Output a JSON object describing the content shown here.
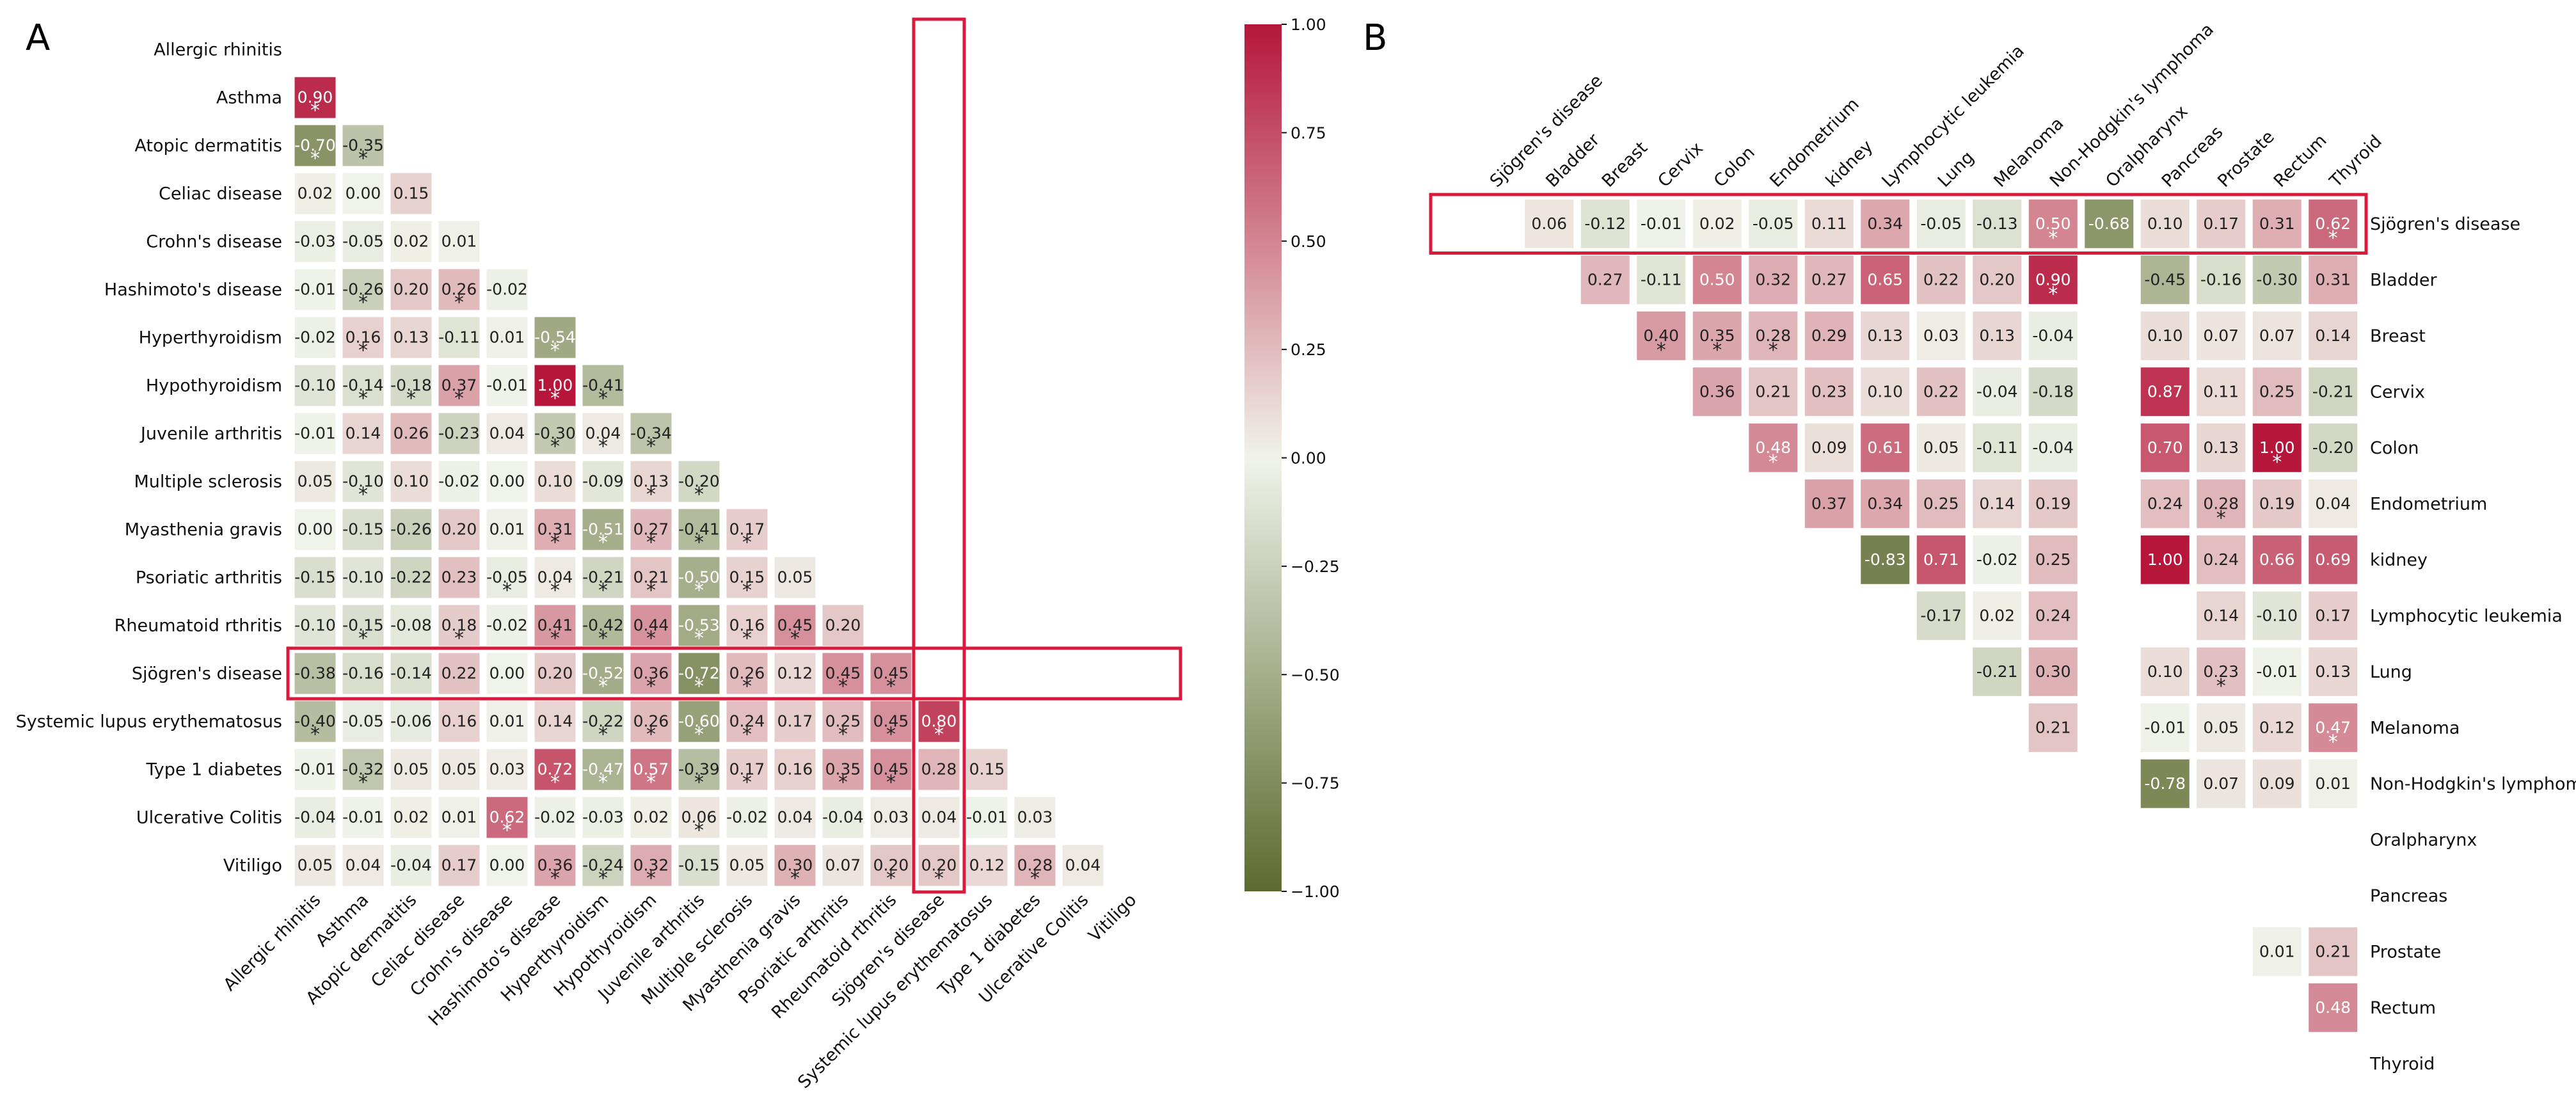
{
  "colors": {
    "negative_end": "#5c6a2e",
    "neutral": "#f0f3ea",
    "positive_end": "#b5163a",
    "highlight": "#d81b3c"
  },
  "panel_labels": [
    "A",
    "B"
  ],
  "chart_data": [
    {
      "type": "heatmap",
      "panel": "A",
      "shape": "lower-triangle",
      "labels": [
        "Allergic rhinitis",
        "Asthma",
        "Atopic dermatitis",
        "Celiac disease",
        "Crohn's disease",
        "Hashimoto's disease",
        "Hyperthyroidism",
        "Hypothyroidism",
        "Juvenile arthritis",
        "Multiple sclerosis",
        "Myasthenia gravis",
        "Psoriatic arthritis",
        "Rheumatoid rthritis",
        "Sjögren's disease",
        "Systemic lupus erythematosus",
        "Type 1 diabetes",
        "Ulcerative Colitis",
        "Vitiligo"
      ],
      "matrix": [
        [],
        [
          0.9
        ],
        [
          -0.7,
          -0.35
        ],
        [
          0.02,
          0.0,
          0.15
        ],
        [
          -0.03,
          -0.05,
          0.02,
          0.01
        ],
        [
          -0.01,
          -0.26,
          0.2,
          0.26,
          -0.02
        ],
        [
          -0.02,
          0.16,
          0.13,
          -0.11,
          0.01,
          -0.54
        ],
        [
          -0.1,
          -0.14,
          -0.18,
          0.37,
          -0.01,
          1.0,
          -0.41
        ],
        [
          -0.01,
          0.14,
          0.26,
          -0.23,
          0.04,
          -0.3,
          0.04,
          -0.34
        ],
        [
          0.05,
          -0.1,
          0.1,
          -0.02,
          0.0,
          0.1,
          -0.09,
          0.13,
          -0.2
        ],
        [
          0.0,
          -0.15,
          -0.26,
          0.2,
          0.01,
          0.31,
          -0.51,
          0.27,
          -0.41,
          0.17
        ],
        [
          -0.15,
          -0.1,
          -0.22,
          0.23,
          -0.05,
          0.04,
          -0.21,
          0.21,
          -0.5,
          0.15,
          0.05
        ],
        [
          -0.1,
          -0.15,
          -0.08,
          0.18,
          -0.02,
          0.41,
          -0.42,
          0.44,
          -0.53,
          0.16,
          0.45,
          0.2
        ],
        [
          -0.38,
          -0.16,
          -0.14,
          0.22,
          0.0,
          0.2,
          -0.52,
          0.36,
          -0.72,
          0.26,
          0.12,
          0.45,
          0.45
        ],
        [
          -0.4,
          -0.05,
          -0.06,
          0.16,
          0.01,
          0.14,
          -0.22,
          0.26,
          -0.6,
          0.24,
          0.17,
          0.25,
          0.45,
          0.8
        ],
        [
          -0.01,
          -0.32,
          0.05,
          0.05,
          0.03,
          0.72,
          -0.47,
          0.57,
          -0.39,
          0.17,
          0.16,
          0.35,
          0.45,
          0.28,
          0.15
        ],
        [
          -0.04,
          -0.01,
          0.02,
          0.01,
          0.62,
          -0.02,
          -0.03,
          0.02,
          0.06,
          -0.02,
          0.04,
          -0.04,
          0.03,
          0.04,
          -0.01,
          0.03
        ],
        [
          0.05,
          0.04,
          -0.04,
          0.17,
          0.0,
          0.36,
          -0.24,
          0.32,
          -0.15,
          0.05,
          0.3,
          0.07,
          0.2,
          0.2,
          0.12,
          0.28,
          0.04
        ]
      ],
      "significant": [
        [
          1,
          0
        ],
        [
          2,
          0
        ],
        [
          2,
          1
        ],
        [
          5,
          1
        ],
        [
          5,
          3
        ],
        [
          6,
          1
        ],
        [
          6,
          5
        ],
        [
          7,
          1
        ],
        [
          7,
          2
        ],
        [
          7,
          3
        ],
        [
          7,
          5
        ],
        [
          7,
          6
        ],
        [
          8,
          5
        ],
        [
          8,
          6
        ],
        [
          8,
          7
        ],
        [
          9,
          1
        ],
        [
          9,
          7
        ],
        [
          9,
          8
        ],
        [
          10,
          5
        ],
        [
          10,
          6
        ],
        [
          10,
          7
        ],
        [
          10,
          8
        ],
        [
          10,
          9
        ],
        [
          11,
          4
        ],
        [
          11,
          5
        ],
        [
          11,
          6
        ],
        [
          11,
          7
        ],
        [
          11,
          8
        ],
        [
          11,
          9
        ],
        [
          12,
          1
        ],
        [
          12,
          3
        ],
        [
          12,
          5
        ],
        [
          12,
          6
        ],
        [
          12,
          7
        ],
        [
          12,
          8
        ],
        [
          12,
          9
        ],
        [
          12,
          10
        ],
        [
          13,
          6
        ],
        [
          13,
          7
        ],
        [
          13,
          8
        ],
        [
          13,
          9
        ],
        [
          13,
          11
        ],
        [
          13,
          12
        ],
        [
          14,
          0
        ],
        [
          14,
          6
        ],
        [
          14,
          7
        ],
        [
          14,
          8
        ],
        [
          14,
          9
        ],
        [
          14,
          11
        ],
        [
          14,
          12
        ],
        [
          14,
          13
        ],
        [
          15,
          1
        ],
        [
          15,
          5
        ],
        [
          15,
          6
        ],
        [
          15,
          7
        ],
        [
          15,
          8
        ],
        [
          15,
          9
        ],
        [
          15,
          11
        ],
        [
          15,
          12
        ],
        [
          16,
          4
        ],
        [
          16,
          8
        ],
        [
          17,
          5
        ],
        [
          17,
          6
        ],
        [
          17,
          7
        ],
        [
          17,
          10
        ],
        [
          17,
          12
        ],
        [
          17,
          13
        ],
        [
          17,
          15
        ]
      ],
      "highlight_label": "Sjögren's disease",
      "colorbar": {
        "min": -1.0,
        "max": 1.0,
        "ticks": [
          "1.00",
          "0.75",
          "0.50",
          "0.25",
          "0.00",
          "−0.25",
          "−0.50",
          "−0.75",
          "−1.00"
        ]
      }
    },
    {
      "type": "heatmap",
      "panel": "B",
      "col_labels": [
        "Sjögren's disease",
        "Bladder",
        "Breast",
        "Cervix",
        "Colon",
        "Endometrium",
        "kidney",
        "Lymphocytic  leukemia",
        "Lung",
        "Melanoma",
        "Non-Hodgkin's lymphoma",
        "Oralpharynx",
        "Pancreas",
        "Prostate",
        "Rectum",
        "Thyroid"
      ],
      "row_labels": [
        "Sjögren's disease",
        "Bladder",
        "Breast",
        "Cervix",
        "Colon",
        "Endometrium",
        "kidney",
        "Lymphocytic  leukemia",
        "Lung",
        "Melanoma",
        "Non-Hodgkin's lymphoma",
        "Oralpharynx",
        "Pancreas",
        "Prostate",
        "Rectum",
        "Thyroid"
      ],
      "cells": [
        [
          0,
          1,
          0.06
        ],
        [
          0,
          2,
          -0.12
        ],
        [
          0,
          3,
          -0.01
        ],
        [
          0,
          4,
          0.02
        ],
        [
          0,
          5,
          -0.05
        ],
        [
          0,
          6,
          0.11
        ],
        [
          0,
          7,
          0.34
        ],
        [
          0,
          8,
          -0.05
        ],
        [
          0,
          9,
          -0.13
        ],
        [
          0,
          10,
          0.5
        ],
        [
          0,
          11,
          -0.68
        ],
        [
          0,
          12,
          0.1
        ],
        [
          0,
          13,
          0.17
        ],
        [
          0,
          14,
          0.31
        ],
        [
          0,
          15,
          0.62
        ],
        [
          1,
          2,
          0.27
        ],
        [
          1,
          3,
          -0.11
        ],
        [
          1,
          4,
          0.5
        ],
        [
          1,
          5,
          0.32
        ],
        [
          1,
          6,
          0.27
        ],
        [
          1,
          7,
          0.65
        ],
        [
          1,
          8,
          0.22
        ],
        [
          1,
          9,
          0.2
        ],
        [
          1,
          10,
          0.9
        ],
        [
          1,
          12,
          -0.45
        ],
        [
          1,
          13,
          -0.16
        ],
        [
          1,
          14,
          -0.3
        ],
        [
          1,
          15,
          0.31
        ],
        [
          2,
          3,
          0.4
        ],
        [
          2,
          4,
          0.35
        ],
        [
          2,
          5,
          0.28
        ],
        [
          2,
          6,
          0.29
        ],
        [
          2,
          7,
          0.13
        ],
        [
          2,
          8,
          0.03
        ],
        [
          2,
          9,
          0.13
        ],
        [
          2,
          10,
          -0.04
        ],
        [
          2,
          12,
          0.1
        ],
        [
          2,
          13,
          0.07
        ],
        [
          2,
          14,
          0.07
        ],
        [
          2,
          15,
          0.14
        ],
        [
          3,
          4,
          0.36
        ],
        [
          3,
          5,
          0.21
        ],
        [
          3,
          6,
          0.23
        ],
        [
          3,
          7,
          0.1
        ],
        [
          3,
          8,
          0.22
        ],
        [
          3,
          9,
          -0.04
        ],
        [
          3,
          10,
          -0.18
        ],
        [
          3,
          12,
          0.87
        ],
        [
          3,
          13,
          0.11
        ],
        [
          3,
          14,
          0.25
        ],
        [
          3,
          15,
          -0.21
        ],
        [
          4,
          5,
          0.48
        ],
        [
          4,
          6,
          0.09
        ],
        [
          4,
          7,
          0.61
        ],
        [
          4,
          8,
          0.05
        ],
        [
          4,
          9,
          -0.11
        ],
        [
          4,
          10,
          -0.04
        ],
        [
          4,
          12,
          0.7
        ],
        [
          4,
          13,
          0.13
        ],
        [
          4,
          14,
          1.0
        ],
        [
          4,
          15,
          -0.2
        ],
        [
          5,
          6,
          0.37
        ],
        [
          5,
          7,
          0.34
        ],
        [
          5,
          8,
          0.25
        ],
        [
          5,
          9,
          0.14
        ],
        [
          5,
          10,
          0.19
        ],
        [
          5,
          12,
          0.24
        ],
        [
          5,
          13,
          0.28
        ],
        [
          5,
          14,
          0.19
        ],
        [
          5,
          15,
          0.04
        ],
        [
          6,
          7,
          -0.83
        ],
        [
          6,
          8,
          0.71
        ],
        [
          6,
          9,
          -0.02
        ],
        [
          6,
          10,
          0.25
        ],
        [
          6,
          12,
          1.0
        ],
        [
          6,
          13,
          0.24
        ],
        [
          6,
          14,
          0.66
        ],
        [
          6,
          15,
          0.69
        ],
        [
          7,
          8,
          -0.17
        ],
        [
          7,
          9,
          0.02
        ],
        [
          7,
          10,
          0.24
        ],
        [
          7,
          13,
          0.14
        ],
        [
          7,
          14,
          -0.1
        ],
        [
          7,
          15,
          0.17
        ],
        [
          8,
          9,
          -0.21
        ],
        [
          8,
          10,
          0.3
        ],
        [
          8,
          12,
          0.1
        ],
        [
          8,
          13,
          0.23
        ],
        [
          8,
          14,
          -0.01
        ],
        [
          8,
          15,
          0.13
        ],
        [
          9,
          10,
          0.21
        ],
        [
          9,
          12,
          -0.01
        ],
        [
          9,
          13,
          0.05
        ],
        [
          9,
          14,
          0.12
        ],
        [
          9,
          15,
          0.47
        ],
        [
          10,
          12,
          -0.78
        ],
        [
          10,
          13,
          0.07
        ],
        [
          10,
          14,
          0.09
        ],
        [
          10,
          15,
          0.01
        ],
        [
          13,
          14,
          0.01
        ],
        [
          13,
          15,
          0.21
        ],
        [
          14,
          15,
          0.48
        ]
      ],
      "significant": [
        [
          0,
          10
        ],
        [
          0,
          15
        ],
        [
          1,
          10
        ],
        [
          2,
          3
        ],
        [
          2,
          4
        ],
        [
          2,
          5
        ],
        [
          4,
          5
        ],
        [
          4,
          14
        ],
        [
          5,
          13
        ],
        [
          8,
          13
        ],
        [
          9,
          15
        ]
      ],
      "highlight_label": "Sjögren's disease"
    }
  ]
}
